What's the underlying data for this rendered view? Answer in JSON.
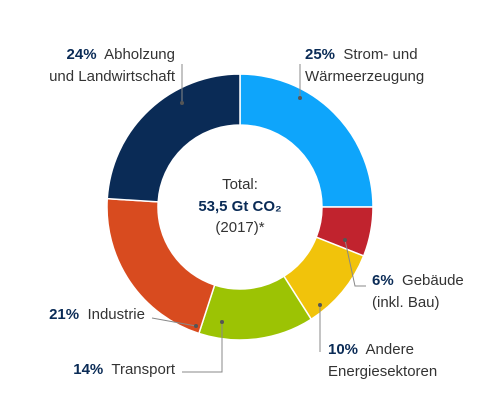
{
  "chart_data": {
    "type": "donut",
    "categories": [
      [
        "Strom- und",
        "Wärmeerzeugung"
      ],
      [
        "Gebäude",
        "(inkl. Bau)"
      ],
      [
        "Andere",
        "Energiesektoren"
      ],
      [
        "Transport"
      ],
      [
        "Industrie"
      ],
      [
        "Abholzung",
        "und Landwirtschaft"
      ]
    ],
    "values": [
      25,
      6,
      10,
      14,
      21,
      24
    ],
    "value_labels": [
      "25%",
      "6%",
      "10%",
      "14%",
      "21%",
      "24%"
    ],
    "colors": [
      "#0ea5fb",
      "#c1232e",
      "#f1c30b",
      "#9cc304",
      "#d84b1f",
      "#0a2b56"
    ],
    "center_text": [
      "Total:",
      "53,5 Gt CO₂",
      "(2017)*"
    ]
  }
}
